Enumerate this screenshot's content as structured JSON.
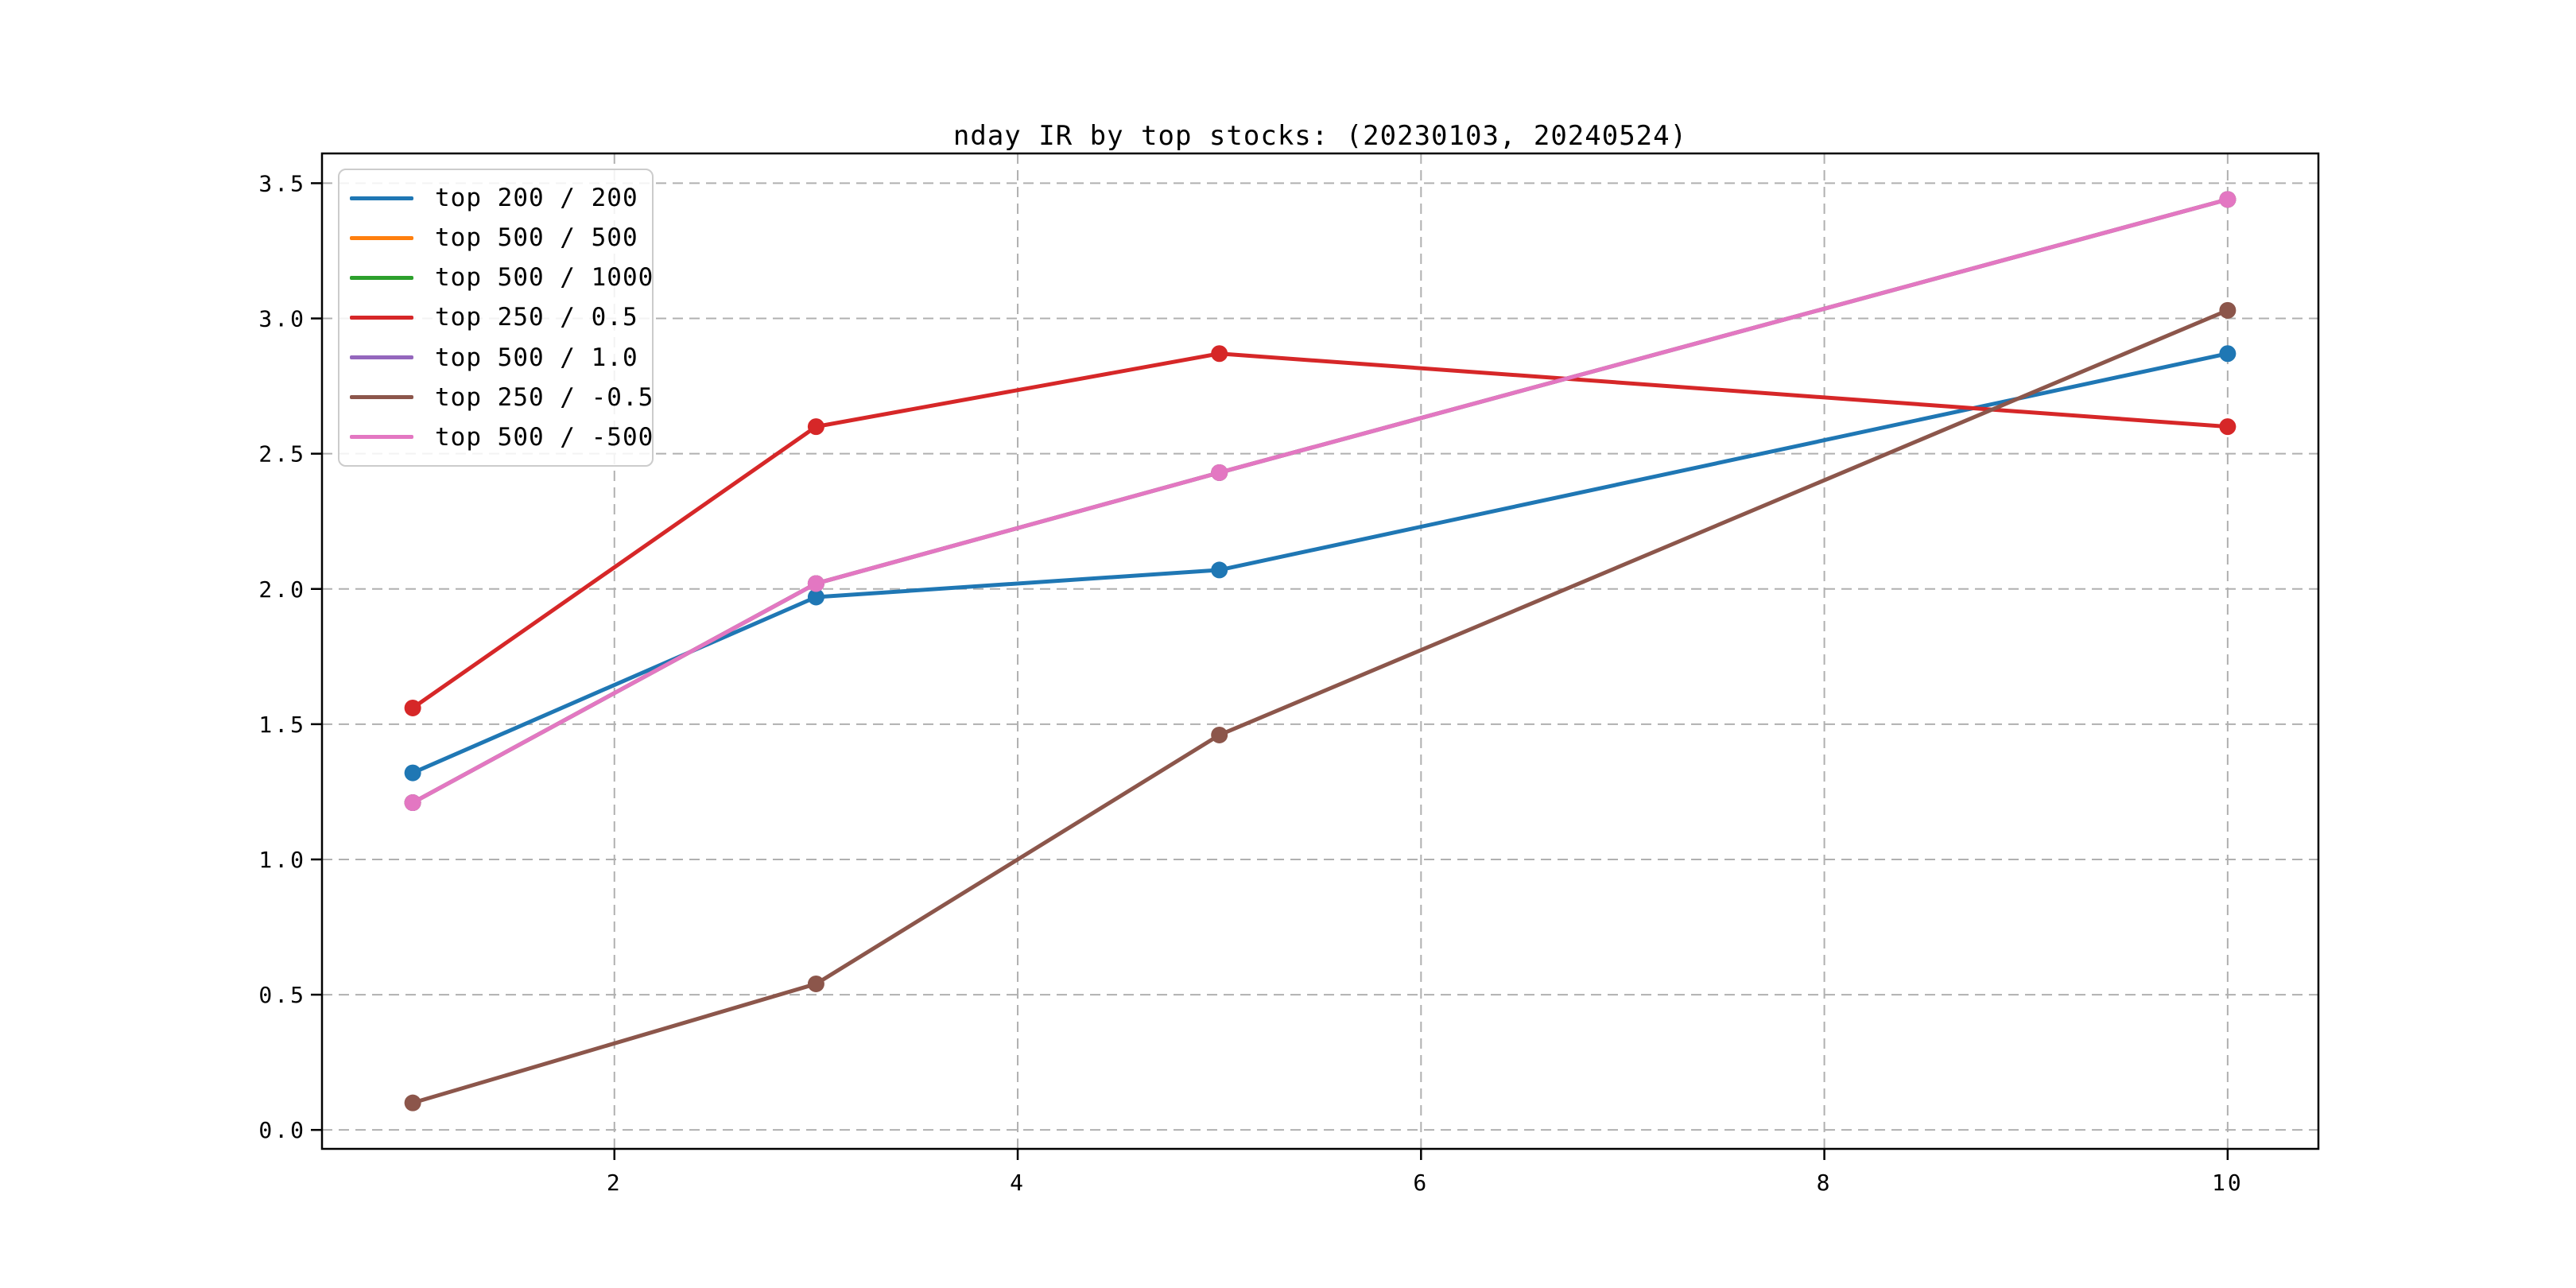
{
  "chart_data": {
    "type": "line",
    "title": "nday IR by top stocks: (20230103, 20240524)",
    "x": [
      1,
      3,
      5,
      10
    ],
    "series": [
      {
        "name": "top 200 / 200",
        "color": "#1f77b4",
        "values": [
          1.32,
          1.97,
          2.07,
          2.87
        ]
      },
      {
        "name": "top 500 / 500",
        "color": "#ff7f0e",
        "values": [
          1.21,
          2.02,
          2.43,
          3.44
        ],
        "occluded_by_last_series": true
      },
      {
        "name": "top 500 / 1000",
        "color": "#2ca02c",
        "values": [
          1.21,
          2.02,
          2.43,
          3.44
        ],
        "occluded_by_last_series": true
      },
      {
        "name": "top 250 / 0.5",
        "color": "#d62728",
        "values": [
          1.56,
          2.6,
          2.87,
          2.6
        ]
      },
      {
        "name": "top 500 / 1.0",
        "color": "#9467bd",
        "values": [
          1.21,
          2.02,
          2.43,
          3.44
        ],
        "occluded_by_last_series": true
      },
      {
        "name": "top 250 / -0.5",
        "color": "#8c564b",
        "values": [
          0.1,
          0.54,
          1.46,
          3.03
        ]
      },
      {
        "name": "top 500 / -500",
        "color": "#e377c2",
        "values": [
          1.21,
          2.02,
          2.43,
          3.44
        ]
      }
    ],
    "x_ticks": [
      "2",
      "4",
      "6",
      "8",
      "10"
    ],
    "y_ticks": [
      "0.0",
      "0.5",
      "1.0",
      "1.5",
      "2.0",
      "2.5",
      "3.0",
      "3.5"
    ],
    "xlim": [
      0.55,
      10.45
    ],
    "ylim": [
      -0.07,
      3.61
    ],
    "grid": true,
    "grid_style": "dashed",
    "legend_position": "upper left",
    "marker": "circle",
    "note": "Only 4 polylines are visually distinct; the orange, green and purple series coincide exactly with the pink series and are drawn beneath it."
  },
  "colors": {
    "background": "#ffffff",
    "spine": "#000000",
    "grid": "#b0b0b0",
    "tick": "#000000",
    "legend_border": "#cccccc"
  }
}
